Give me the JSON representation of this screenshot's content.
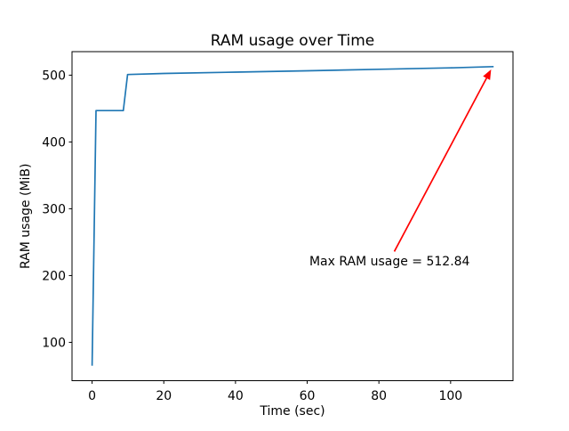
{
  "figure": {
    "background": "#ffffff",
    "spine_color": "#000000"
  },
  "chart_data": {
    "type": "line",
    "title": "RAM usage over Time",
    "xlabel": "Time (sec)",
    "ylabel": "RAM usage (MiB)",
    "xlim": [
      -5.6,
      117.4
    ],
    "ylim": [
      42.6,
      535.2
    ],
    "xticks": [
      0,
      20,
      40,
      60,
      80,
      100
    ],
    "yticks": [
      100,
      200,
      300,
      400,
      500
    ],
    "grid": false,
    "legend": null,
    "series": [
      {
        "name": "RAM usage",
        "color": "#1f77b4",
        "points": [
          [
            0,
            65
          ],
          [
            1.1,
            447
          ],
          [
            8.7,
            447
          ],
          [
            9.9,
            501
          ],
          [
            20,
            502.5
          ],
          [
            40,
            504.6
          ],
          [
            60,
            506.5
          ],
          [
            80,
            508.8
          ],
          [
            100,
            511
          ],
          [
            112,
            512.84
          ]
        ]
      }
    ],
    "annotation": {
      "text": "Max RAM usage = 512.84",
      "color": "#ff0000",
      "text_xy": [
        60.6,
        215
      ],
      "arrow_from": [
        84.3,
        236
      ],
      "arrow_to": [
        111.3,
        508.5
      ]
    }
  }
}
